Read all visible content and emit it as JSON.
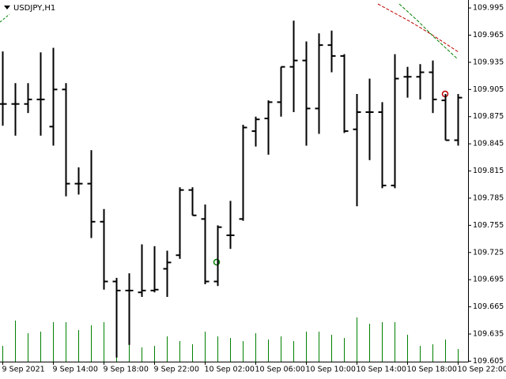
{
  "chart_data": {
    "type": "ohlc",
    "title": "USDJPY,H1",
    "categories": [
      "9 Sep 2021",
      null,
      null,
      null,
      "9 Sep 14:00",
      null,
      null,
      null,
      "9 Sep 18:00",
      null,
      null,
      null,
      "9 Sep 22:00",
      null,
      null,
      null,
      "10 Sep 02:00",
      null,
      null,
      null,
      "10 Sep 06:00",
      null,
      null,
      null,
      "10 Sep 10:00",
      null,
      null,
      null,
      "10 Sep 14:00",
      null,
      null,
      null,
      "10 Sep 18:00",
      null,
      null,
      null,
      "10 Sep 22:00"
    ],
    "open": [
      109.889,
      109.889,
      109.889,
      109.894,
      109.864,
      109.905,
      109.801,
      109.801,
      109.759,
      109.693,
      109.683,
      109.681,
      109.683,
      109.707,
      109.722,
      109.794,
      109.762,
      109.693,
      109.744,
      109.762,
      109.859,
      109.873,
      109.891,
      109.93,
      109.937,
      109.884,
      109.954,
      109.942,
      109.861,
      109.88,
      109.88,
      109.799,
      109.919,
      109.919,
      109.924,
      109.893,
      109.849
    ],
    "high": [
      109.947,
      109.912,
      109.912,
      109.946,
      109.951,
      109.912,
      109.819,
      109.838,
      109.773,
      109.697,
      109.702,
      109.734,
      109.732,
      109.727,
      109.797,
      109.797,
      109.778,
      109.755,
      109.782,
      109.866,
      109.875,
      109.893,
      109.93,
      109.981,
      109.958,
      109.967,
      109.97,
      109.944,
      109.9,
      109.917,
      109.891,
      109.944,
      109.93,
      109.933,
      109.937,
      109.9,
      109.9
    ],
    "low": [
      109.865,
      109.854,
      109.879,
      109.854,
      109.843,
      109.787,
      109.789,
      109.741,
      109.684,
      109.609,
      109.623,
      109.676,
      109.681,
      109.676,
      109.718,
      109.766,
      109.69,
      109.688,
      109.729,
      109.76,
      109.842,
      109.833,
      109.875,
      109.88,
      109.843,
      109.856,
      109.924,
      109.857,
      109.776,
      109.827,
      109.796,
      109.796,
      109.896,
      109.894,
      109.879,
      109.849,
      109.843
    ],
    "close": [
      109.889,
      109.889,
      109.894,
      109.894,
      109.905,
      109.801,
      109.801,
      109.759,
      109.693,
      109.683,
      109.683,
      109.683,
      109.684,
      109.714,
      109.794,
      109.766,
      109.693,
      109.753,
      109.744,
      109.863,
      109.872,
      109.891,
      109.93,
      109.937,
      109.884,
      109.954,
      109.942,
      109.859,
      109.88,
      109.88,
      109.799,
      109.917,
      109.919,
      109.924,
      109.894,
      109.849,
      109.896
    ],
    "color": "#000000",
    "volume": [
      20,
      52,
      36,
      38,
      50,
      50,
      40,
      46,
      50,
      30,
      22,
      18,
      20,
      32,
      26,
      22,
      38,
      32,
      30,
      26,
      36,
      28,
      32,
      26,
      38,
      38,
      34,
      30,
      56,
      48,
      50,
      50,
      34,
      20,
      22,
      28,
      16
    ],
    "volume_color": "#008000",
    "ylim": [
      109.6045,
      110.0038
    ],
    "yticks": [
      109.995,
      109.965,
      109.935,
      109.905,
      109.875,
      109.845,
      109.815,
      109.785,
      109.755,
      109.725,
      109.695,
      109.665,
      109.635,
      109.605
    ],
    "y2lim": [
      0,
      458
    ]
  }
}
